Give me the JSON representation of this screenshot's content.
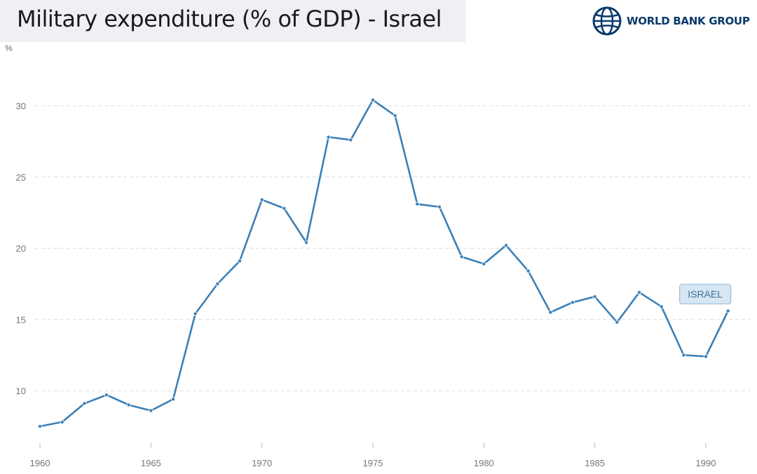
{
  "title": "Military expenditure (% of GDP) - Israel",
  "brand": {
    "name": "WORLD BANK GROUP",
    "icon": "globe-icon",
    "color": "#0a3a6b"
  },
  "chart_data": {
    "type": "line",
    "ylabel": "%",
    "xlim": [
      1960,
      1991
    ],
    "ylim": [
      6,
      32
    ],
    "x_ticks": [
      1960,
      1965,
      1970,
      1975,
      1980,
      1985,
      1990
    ],
    "y_ticks": [
      10,
      15,
      20,
      25,
      30
    ],
    "grid": "horizontal-dashed",
    "line_color": "#3a80b8",
    "series": [
      {
        "name": "ISRAEL",
        "x": [
          1960,
          1961,
          1962,
          1963,
          1964,
          1965,
          1966,
          1967,
          1968,
          1969,
          1970,
          1971,
          1972,
          1973,
          1974,
          1975,
          1976,
          1977,
          1978,
          1979,
          1980,
          1981,
          1982,
          1983,
          1984,
          1985,
          1986,
          1987,
          1988,
          1989,
          1990,
          1991
        ],
        "y": [
          7.5,
          7.8,
          9.1,
          9.7,
          9.0,
          8.6,
          9.4,
          15.4,
          17.5,
          19.1,
          23.4,
          22.8,
          20.4,
          27.8,
          27.6,
          30.4,
          29.3,
          23.1,
          22.9,
          19.4,
          18.9,
          20.2,
          18.4,
          15.5,
          16.2,
          16.6,
          14.8,
          16.9,
          15.9,
          12.5,
          12.4,
          15.6
        ]
      }
    ]
  }
}
